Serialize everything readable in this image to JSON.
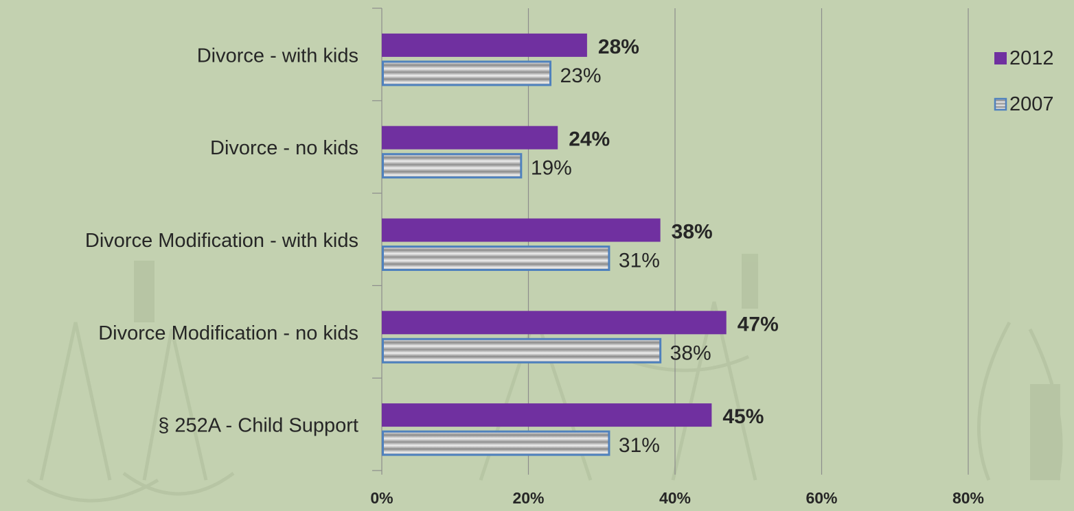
{
  "chart_data": {
    "type": "bar",
    "orientation": "horizontal",
    "title": "",
    "xlabel": "",
    "ylabel": "",
    "categories": [
      "Divorce - with kids",
      "Divorce - no kids",
      "Divorce Modification - with kids",
      "Divorce Modification - no kids",
      "§ 252A - Child Support"
    ],
    "series": [
      {
        "name": "2012",
        "values": [
          28,
          24,
          38,
          47,
          45
        ],
        "labels": [
          "28%",
          "24%",
          "38%",
          "47%",
          "45%"
        ],
        "color": "#7030a0"
      },
      {
        "name": "2007",
        "values": [
          23,
          19,
          31,
          38,
          31
        ],
        "labels": [
          "23%",
          "19%",
          "31%",
          "38%",
          "31%"
        ],
        "color": "#4f81bd"
      }
    ],
    "xlim": [
      0,
      80
    ],
    "xticks": [
      0,
      20,
      40,
      60,
      80
    ],
    "xtick_labels": [
      "0%",
      "20%",
      "40%",
      "60%",
      "80%"
    ],
    "grid": true,
    "legend": "right"
  },
  "colors": {
    "background": "#c3d1b0",
    "watermark": "#b8c6a5",
    "gridline": "#8c8c8c",
    "text": "#262626"
  }
}
